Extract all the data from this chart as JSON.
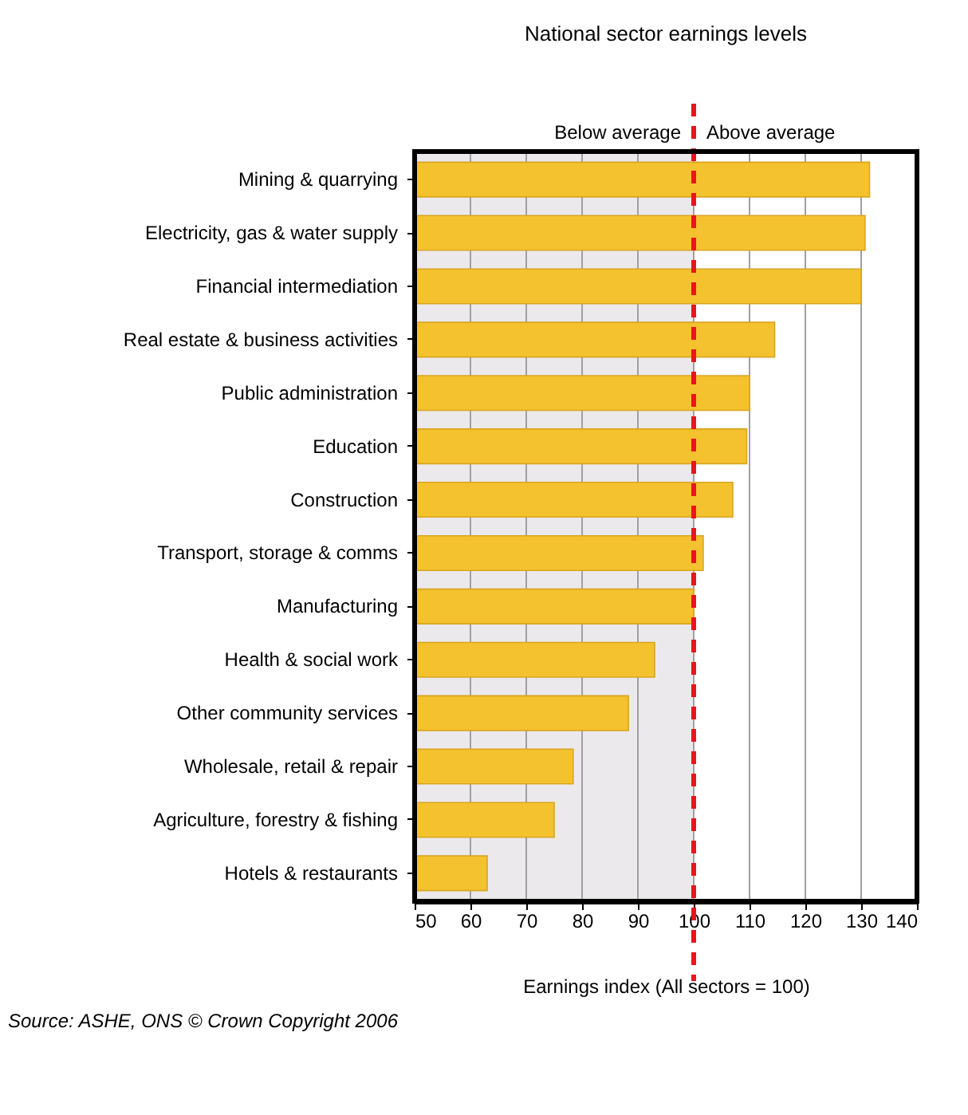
{
  "chart_data": {
    "type": "bar",
    "orientation": "horizontal",
    "title": "National sector earnings levels",
    "xlabel": "Earnings index (All sectors = 100)",
    "categories": [
      "Mining & quarrying",
      "Electricity, gas & water supply",
      "Financial intermediation",
      "Real estate & business activities",
      "Public administration",
      "Education",
      "Construction",
      "Transport, storage & comms",
      "Manufacturing",
      "Health & social work",
      "Other community services",
      "Wholesale, retail & repair",
      "Agriculture, forestry & fishing",
      "Hotels & restaurants"
    ],
    "values": [
      131.5,
      130.7,
      130,
      114.5,
      110,
      109.5,
      107,
      101.7,
      100,
      93,
      88.3,
      78.4,
      75,
      63
    ],
    "color": "#f5c22f",
    "xlim": [
      50,
      140
    ],
    "xticks": [
      50,
      60,
      70,
      80,
      90,
      100,
      110,
      120,
      130,
      140
    ],
    "grid": "x",
    "bands": [
      {
        "axis": "x",
        "from": 50,
        "to": 100,
        "label": "Below average",
        "color": "#ebe9ec"
      },
      {
        "axis": "x",
        "from": 100,
        "to": 140,
        "label": "Above average",
        "color": "#ffffff"
      }
    ],
    "ref_lines": [
      {
        "axis": "x",
        "value": 100,
        "color": "#e8151b",
        "line_style": "dashed"
      }
    ],
    "annotations": [
      "Source: ASHE, ONS © Crown Copyright 2006"
    ]
  }
}
